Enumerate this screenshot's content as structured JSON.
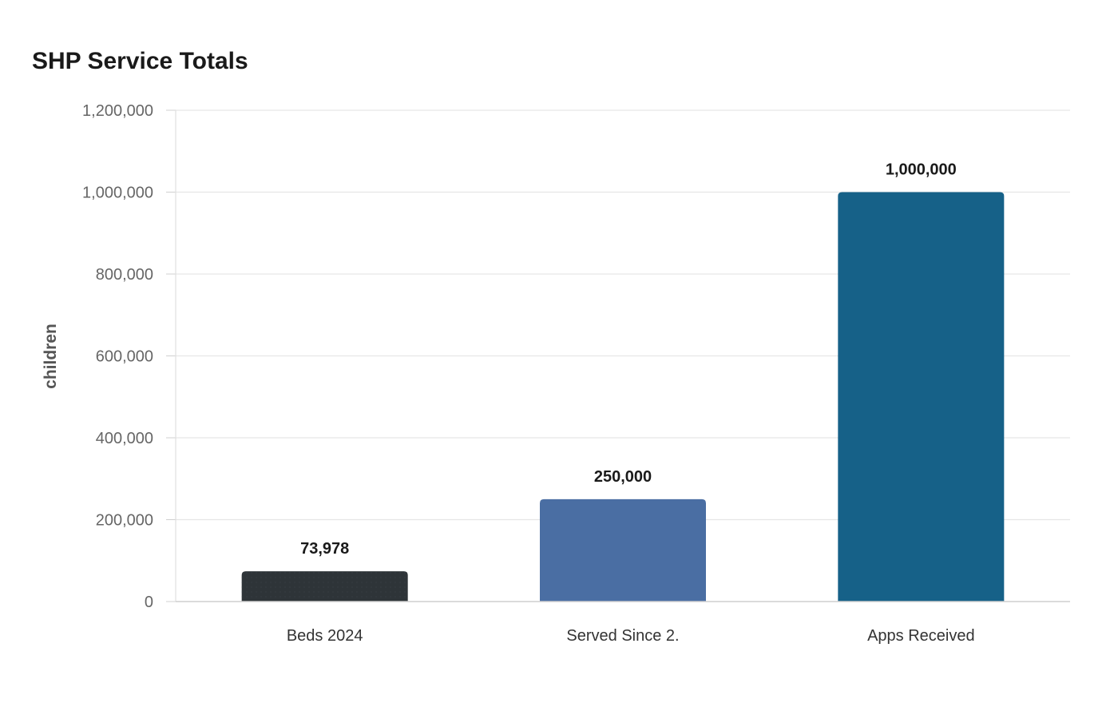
{
  "chart_data": {
    "type": "bar",
    "title": "SHP Service Totals",
    "ylabel": "children",
    "xlabel": "",
    "categories": [
      "Beds 2024",
      "Served Since 2.",
      "Apps Received"
    ],
    "values": [
      73978,
      250000,
      1000000
    ],
    "value_labels": [
      "73,978",
      "250,000",
      "1,000,000"
    ],
    "colors": [
      "#2e3438",
      "#4a6ea3",
      "#166188"
    ],
    "ylim": [
      0,
      1200000
    ],
    "yticks": [
      0,
      200000,
      400000,
      600000,
      800000,
      1000000,
      1200000
    ],
    "ytick_labels": [
      "0",
      "200,000",
      "400,000",
      "600,000",
      "800,000",
      "1,000,000",
      "1,200,000"
    ],
    "grid": true,
    "legend": "none"
  }
}
